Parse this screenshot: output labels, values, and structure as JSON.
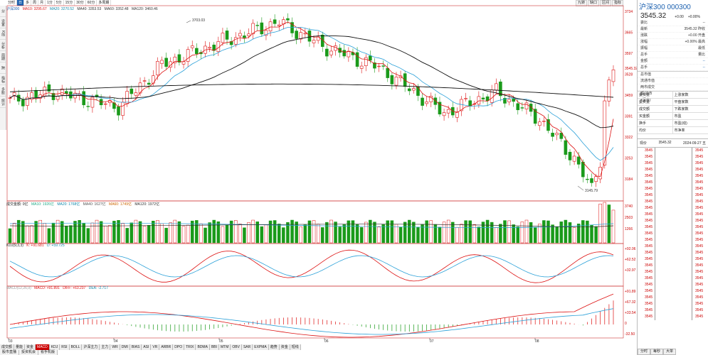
{
  "periods": [
    "分时",
    "日",
    "多",
    "周",
    "月",
    "1分",
    "5分",
    "15分",
    "30分",
    "60分",
    "多周期"
  ],
  "active_period": 1,
  "left_tools": [
    "分",
    "设置",
    "K线",
    "分析",
    "周期",
    "跨",
    "指标",
    "多股",
    "统计"
  ],
  "top_right_tools": [
    "九转",
    "缺口",
    "区间",
    "指标"
  ],
  "legend": {
    "name": "沪深300",
    "ma10": "MA10: 3295.67",
    "ma20": "MA20: 3270.52",
    "ma40": "MA40: 3353.53",
    "ma60": "MA60: 3352.48",
    "ma120": "MA120: 3460.46"
  },
  "annotations": {
    "high": "3703.03",
    "low": "3145.79"
  },
  "price_axis": [
    "3734",
    "3665",
    "3597",
    "3528",
    "3459",
    "3391",
    "3322",
    "3253",
    "3184"
  ],
  "current_price_label": "3545.32",
  "vol_legend": {
    "title": "成交金额: 0亿",
    "ma10": "MA10: 1926亿",
    "ma20": "MA20: 1768亿",
    "ma40": "MA40: 1627亿",
    "ma60": "MA60: 1749亿",
    "ma120": "MA120: 1972亿"
  },
  "vol_axis": [
    "3740",
    "2503",
    "1266"
  ],
  "kdj_legend": {
    "title": "KDJ(9,3,3)",
    "k": "K: +91.681",
    "d": "D: +59.725"
  },
  "kdj_axis": [
    "+92.06",
    "+62.52",
    "+32.97"
  ],
  "macd_legend": {
    "title": "MACD(12,26,9)",
    "macd": "MACD: +91.891",
    "diff": "DIFF: +63.237",
    "dea": "DEA: -2.717"
  },
  "macd_axis": [
    "+91.89",
    "+67.32",
    "+33.54",
    "0",
    "-32.50"
  ],
  "date_labels": [
    "03",
    "04",
    "05",
    "06",
    "07",
    "08",
    "09"
  ],
  "bottom_tabs": [
    "成交额",
    "量能",
    "资金",
    "MACD",
    "KDJ",
    "RSI",
    "BOLL",
    "沪深主力",
    "主力",
    "WR",
    "DMI",
    "BIAS",
    "ASI",
    "VR",
    "ARBR",
    "DPO",
    "TRIX",
    "BDMA",
    "BBI",
    "MTM",
    "OBV",
    "SAR",
    "EXPMA",
    "趋势",
    "资金",
    "短线"
  ],
  "active_tab": 3,
  "bottom_row2": [
    "股市直播",
    "投资机会",
    "看手机版"
  ],
  "right_panel": {
    "title": "沪深300 000300",
    "price": "3545.32",
    "change": "+0.00",
    "pct": "+0.00%",
    "rows1": [
      {
        "k": "委比",
        "v": "--"
      },
      {
        "k": "最新",
        "v": "3545.32 昨收"
      },
      {
        "k": "涨跌",
        "v": "+0.00 开盘"
      },
      {
        "k": "涨幅",
        "v": "+0.00% 最高"
      },
      {
        "k": "振幅",
        "v": "最低"
      },
      {
        "k": "总手",
        "v": "量比"
      },
      {
        "k": "金额",
        "v": "--"
      },
      {
        "k": "总手",
        "v": "--"
      }
    ],
    "rows2": [
      {
        "k": "总市值",
        "v": ""
      },
      {
        "k": "流通市值",
        "v": ""
      },
      {
        "k": "两市成交额(沪市+深市)",
        "v": ""
      }
    ],
    "grid": [
      "委买量",
      "上涨家数",
      "委卖量",
      "平盘家数",
      "成交额",
      "下跌家数",
      "买金额",
      "市盈",
      "换手",
      "市盈(动)",
      "均价",
      "市净率"
    ],
    "tick_head": {
      "label": "现价",
      "price": "3545.32",
      "date": "2024-09-27 五"
    },
    "tick_price": "3545",
    "tick_count": 27,
    "bottom": [
      "分时",
      "每秒",
      "大单"
    ]
  }
}
